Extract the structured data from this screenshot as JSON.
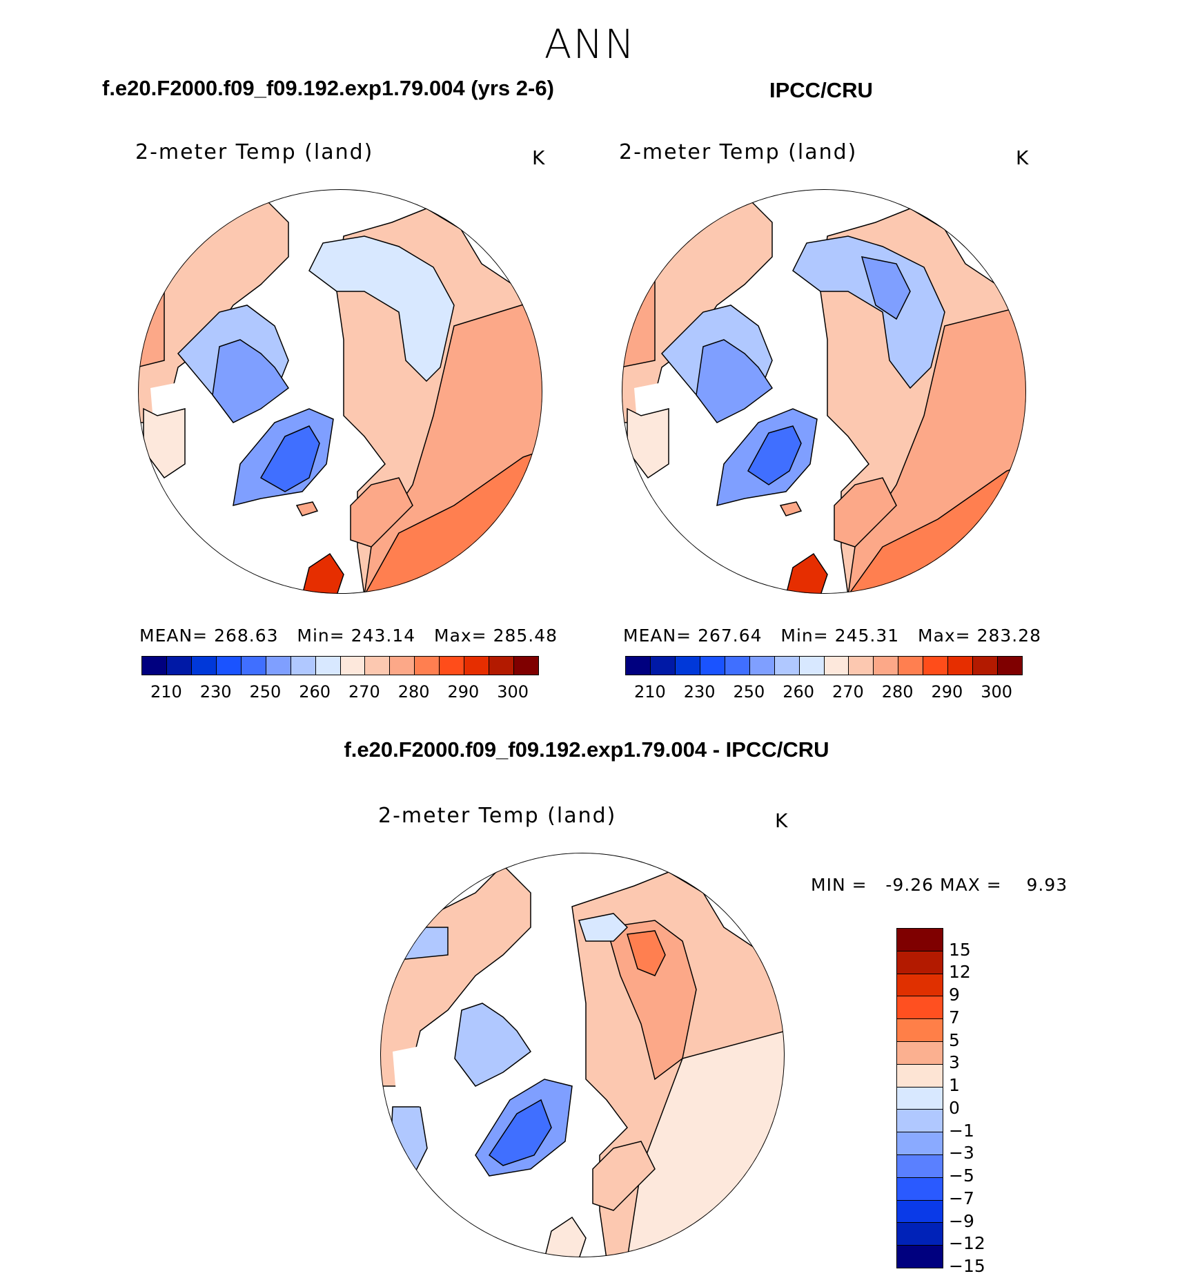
{
  "figure": {
    "main_title": "ANN",
    "left_header": "f.e20.F2000.f09_f09.192.exp1.79.004 (yrs 2-6)",
    "right_header": "IPCC/CRU",
    "diff_header": "f.e20.F2000.f09_f09.192.exp1.79.004 - IPCC/CRU"
  },
  "panels": {
    "model": {
      "title": "2-meter Temp (land)",
      "unit": "K",
      "stats": {
        "mean_label": "MEAN=",
        "mean": "268.63",
        "min_label": "Min=",
        "min": "243.14",
        "max_label": "Max=",
        "max": "285.48"
      }
    },
    "obs": {
      "title": "2-meter Temp (land)",
      "unit": "K",
      "stats": {
        "mean_label": "MEAN=",
        "mean": "267.64",
        "min_label": "Min=",
        "min": "245.31",
        "max_label": "Max=",
        "max": "283.28"
      }
    },
    "diff": {
      "title": "2-meter Temp (land)",
      "unit": "K",
      "stats": {
        "min_label": "MIN =",
        "min": "-9.26",
        "max_label": "MAX =",
        "max": "9.93"
      }
    }
  },
  "colorbars": {
    "temp": {
      "colors": [
        "#00007f",
        "#0019a6",
        "#0038d9",
        "#1a53ff",
        "#406fff",
        "#7f9fff",
        "#b0c8ff",
        "#d8e8ff",
        "#fde8dc",
        "#fcc8b0",
        "#fca888",
        "#ff7f50",
        "#ff4d1a",
        "#e62e00",
        "#b31a00",
        "#7f0000"
      ],
      "tick_labels": [
        "210",
        "230",
        "250",
        "260",
        "270",
        "280",
        "290",
        "300"
      ]
    },
    "diff": {
      "colors": [
        "#7f0000",
        "#b31a00",
        "#e03000",
        "#ff5020",
        "#ff7f48",
        "#fbb090",
        "#fde4d4",
        "#d8e8ff",
        "#b0c8ff",
        "#8aaaff",
        "#5a80ff",
        "#2a5aff",
        "#0a3ae8",
        "#0022b8",
        "#00007f"
      ],
      "tick_labels": [
        "15",
        "12",
        "9",
        "7",
        "5",
        "3",
        "1",
        "0",
        "−1",
        "−3",
        "−5",
        "−7",
        "−9",
        "−12",
        "−15"
      ]
    }
  },
  "map_palette": {
    "ocean": "#ffffff",
    "warm_1": "#fde8dc",
    "warm_2": "#fcc8b0",
    "warm_3": "#fca888",
    "warm_4": "#ff7f50",
    "warm_5": "#e62e00",
    "cool_1": "#d8e8ff",
    "cool_2": "#b0c8ff",
    "cool_3": "#7f9fff",
    "cool_4": "#406fff"
  }
}
